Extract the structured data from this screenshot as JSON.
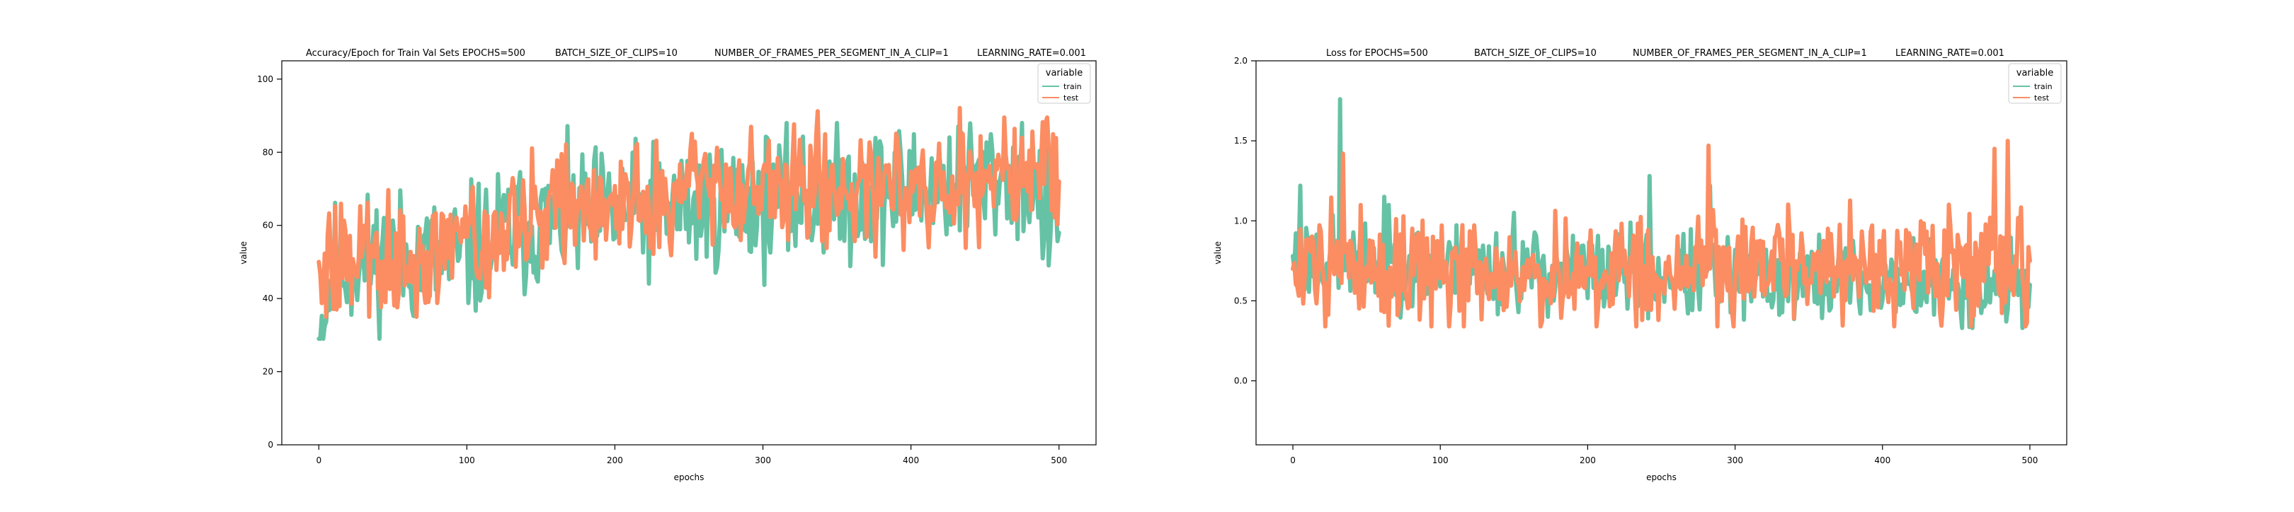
{
  "colors": {
    "train": "#66c2a5",
    "test": "#fc8d62",
    "axis": "#000000",
    "legend_frame": "#cccccc"
  },
  "chart_data": [
    {
      "type": "line",
      "title_parts": [
        "Accuracy/Epoch for Train Val Sets EPOCHS=500",
        "BATCH_SIZE_OF_CLIPS=10",
        "NUMBER_OF_FRAMES_PER_SEGMENT_IN_A_CLIP=1",
        "LEARNING_RATE=0.001"
      ],
      "xlabel": "epochs",
      "ylabel": "value",
      "xlim": [
        -25,
        525
      ],
      "ylim": [
        0,
        105
      ],
      "xticks": [
        0,
        100,
        200,
        300,
        400,
        500
      ],
      "yticks": [
        0,
        20,
        40,
        60,
        80,
        100
      ],
      "grid": false,
      "legend": {
        "title": "variable",
        "location": "top-right",
        "entries": [
          "train",
          "test"
        ]
      },
      "seed": 11,
      "series": [
        {
          "name": "train",
          "anchors": [
            [
              0,
              29
            ],
            [
              10,
              48
            ],
            [
              25,
              50
            ],
            [
              50,
              52
            ],
            [
              75,
              50
            ],
            [
              100,
              52
            ],
            [
              125,
              58
            ],
            [
              150,
              60
            ],
            [
              175,
              62
            ],
            [
              200,
              63
            ],
            [
              225,
              64
            ],
            [
              250,
              65
            ],
            [
              275,
              66
            ],
            [
              300,
              67
            ],
            [
              325,
              67
            ],
            [
              350,
              68
            ],
            [
              375,
              69
            ],
            [
              400,
              70
            ],
            [
              425,
              72
            ],
            [
              450,
              73
            ],
            [
              475,
              74
            ],
            [
              500,
              58
            ]
          ],
          "noise": 9,
          "clip": [
            29,
            88
          ]
        },
        {
          "name": "test",
          "anchors": [
            [
              0,
              50
            ],
            [
              10,
              50
            ],
            [
              25,
              52
            ],
            [
              50,
              50
            ],
            [
              75,
              51
            ],
            [
              100,
              55
            ],
            [
              125,
              60
            ],
            [
              150,
              62
            ],
            [
              175,
              65
            ],
            [
              200,
              66
            ],
            [
              225,
              67
            ],
            [
              250,
              68
            ],
            [
              275,
              69
            ],
            [
              300,
              70
            ],
            [
              325,
              70
            ],
            [
              350,
              71
            ],
            [
              375,
              71
            ],
            [
              400,
              72
            ],
            [
              425,
              73
            ],
            [
              450,
              74
            ],
            [
              475,
              75
            ],
            [
              500,
              72
            ]
          ],
          "noise": 8,
          "clip": [
            35,
            93
          ]
        }
      ]
    },
    {
      "type": "line",
      "title_parts": [
        "Loss for  EPOCHS=500",
        "BATCH_SIZE_OF_CLIPS=10",
        "NUMBER_OF_FRAMES_PER_SEGMENT_IN_A_CLIP=1",
        "LEARNING_RATE=0.001"
      ],
      "xlabel": "epochs",
      "ylabel": "value",
      "xlim": [
        -25,
        525
      ],
      "ylim": [
        -0.4,
        2.0
      ],
      "xticks": [
        0,
        100,
        200,
        300,
        400,
        500
      ],
      "yticks": [
        0.0,
        0.5,
        1.0,
        1.5,
        2.0
      ],
      "ytick_decimals": 1,
      "grid": false,
      "legend": {
        "title": "variable",
        "location": "top-right",
        "entries": [
          "train",
          "test"
        ]
      },
      "seed": 23,
      "series": [
        {
          "name": "train",
          "anchors": [
            [
              0,
              0.78
            ],
            [
              30,
              0.76
            ],
            [
              60,
              0.74
            ],
            [
              100,
              0.72
            ],
            [
              150,
              0.7
            ],
            [
              200,
              0.68
            ],
            [
              250,
              0.66
            ],
            [
              300,
              0.64
            ],
            [
              350,
              0.63
            ],
            [
              400,
              0.62
            ],
            [
              450,
              0.6
            ],
            [
              500,
              0.6
            ]
          ],
          "noise": 0.13,
          "clip": [
            0.33,
            1.76
          ],
          "spikes": [
            [
              5,
              1.22
            ],
            [
              32,
              1.76
            ],
            [
              62,
              1.15
            ],
            [
              150,
              1.05
            ],
            [
              242,
              1.28
            ],
            [
              283,
              1.22
            ]
          ]
        },
        {
          "name": "test",
          "anchors": [
            [
              0,
              0.7
            ],
            [
              30,
              0.72
            ],
            [
              60,
              0.7
            ],
            [
              100,
              0.68
            ],
            [
              150,
              0.65
            ],
            [
              200,
              0.66
            ],
            [
              250,
              0.68
            ],
            [
              300,
              0.7
            ],
            [
              350,
              0.7
            ],
            [
              400,
              0.7
            ],
            [
              450,
              0.72
            ],
            [
              500,
              0.75
            ]
          ],
          "noise": 0.17,
          "clip": [
            0.34,
            1.5
          ],
          "spikes": [
            [
              34,
              1.42
            ],
            [
              282,
              1.47
            ],
            [
              476,
              1.45
            ],
            [
              485,
              1.5
            ]
          ]
        }
      ]
    }
  ]
}
